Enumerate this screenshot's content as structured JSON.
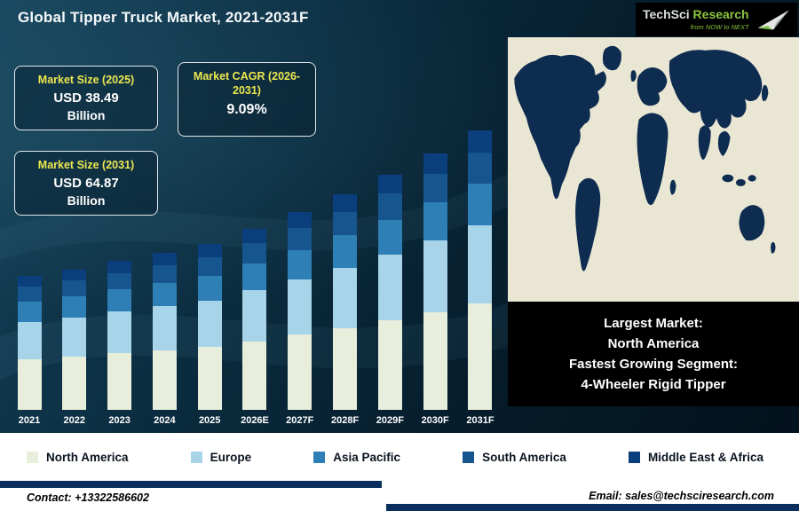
{
  "header": {
    "title": "Global Tipper Truck Market, 2021-2031F",
    "logo": {
      "brand_part1": "TechSci",
      "brand_part2": "Research",
      "tagline": "from NOW to NEXT"
    }
  },
  "cards": [
    {
      "label": "Market Size (2025)",
      "value": "USD 38.49",
      "unit": "Billion"
    },
    {
      "label": "Market CAGR (2026-2031)",
      "value": "9.09%",
      "unit": ""
    },
    {
      "label": "Market Size (2031)",
      "value": "USD 64.87",
      "unit": "Billion"
    }
  ],
  "chart_data": {
    "type": "bar",
    "stacked": true,
    "title": "Global Tipper Truck Market, 2021-2031F",
    "unit": "USD Billion",
    "categories": [
      "2021",
      "2022",
      "2023",
      "2024",
      "2025",
      "2026E",
      "2027F",
      "2028F",
      "2029F",
      "2030F",
      "2031F"
    ],
    "series": [
      {
        "name": "North America",
        "color": "#e7eedb",
        "values": [
          11.78,
          12.39,
          13.11,
          13.83,
          14.63,
          15.96,
          17.41,
          18.99,
          20.72,
          22.6,
          24.65
        ]
      },
      {
        "name": "Europe",
        "color": "#a7d4e8",
        "values": [
          8.68,
          9.13,
          9.66,
          10.19,
          10.78,
          11.76,
          12.83,
          13.99,
          15.27,
          16.65,
          18.16
        ]
      },
      {
        "name": "Asia Pacific",
        "color": "#2e7fb5",
        "values": [
          4.65,
          4.89,
          5.18,
          5.46,
          5.77,
          6.3,
          6.87,
          7.5,
          8.18,
          8.92,
          9.73
        ]
      },
      {
        "name": "South America",
        "color": "#16558e",
        "values": [
          3.41,
          3.59,
          3.8,
          4.0,
          4.23,
          4.62,
          5.04,
          5.5,
          6.0,
          6.54,
          7.14
        ]
      },
      {
        "name": "Middle East & Africa",
        "color": "#0a3e7d",
        "values": [
          2.48,
          2.61,
          2.76,
          2.91,
          3.08,
          3.36,
          3.66,
          4.0,
          4.36,
          4.76,
          5.19
        ]
      }
    ],
    "totals": [
      31.0,
      32.6,
      34.5,
      36.4,
      38.49,
      41.99,
      45.81,
      49.97,
      54.52,
      59.47,
      64.87
    ],
    "ylim": [
      0,
      70
    ],
    "grid": false,
    "axes_visible": false,
    "legend_position": "bottom"
  },
  "info_box": {
    "lines": [
      "Largest Market:",
      "North America",
      "Fastest Growing Segment:",
      "4-Wheeler Rigid Tipper"
    ]
  },
  "footer": {
    "contact": "Contact: +13322586602",
    "email": "Email: sales@techsciresearch.com"
  }
}
